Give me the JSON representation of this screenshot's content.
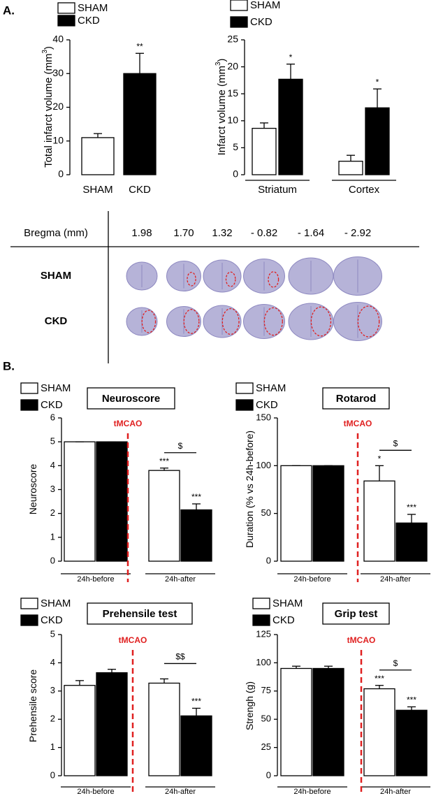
{
  "panel_labels": [
    "A.",
    "B."
  ],
  "chart_data": [
    {
      "type": "bar",
      "y_label": [
        "Total infarct volume (mm",
        "3",
        ")"
      ],
      "categories": [
        "SHAM",
        "CKD"
      ],
      "values": [
        11,
        30
      ],
      "errors": [
        1.2,
        6
      ],
      "colors": [
        "#ffffff",
        "#000000"
      ],
      "legend": [
        "SHAM",
        "CKD"
      ],
      "significance": [
        null,
        "**"
      ],
      "ylim": [
        0,
        40
      ],
      "yticks": [
        0,
        10,
        20,
        30,
        40
      ]
    },
    {
      "type": "grouped-bar",
      "y_label": [
        "Infarct volume (mm",
        "3",
        ")"
      ],
      "categories": [
        "Striatum",
        "Cortex"
      ],
      "series": [
        {
          "name": "SHAM",
          "color": "#ffffff",
          "values": [
            8.6,
            2.5
          ],
          "errors": [
            1.0,
            1.1
          ],
          "significance": [
            null,
            null
          ]
        },
        {
          "name": "CKD",
          "color": "#000000",
          "values": [
            17.7,
            12.4
          ],
          "errors": [
            2.8,
            3.5
          ],
          "significance": [
            "*",
            "*"
          ]
        }
      ],
      "ylim": [
        0,
        25
      ],
      "yticks": [
        0,
        5,
        10,
        15,
        20,
        25
      ]
    },
    {
      "type": "grouped-bar",
      "title": "Neuroscore",
      "y_label": [
        "Neuroscore"
      ],
      "event_label": "tMCAO",
      "comparison": "$",
      "categories": [
        "24h-before",
        "24h-after"
      ],
      "series": [
        {
          "name": "SHAM",
          "color": "#ffffff",
          "values": [
            5,
            3.8
          ],
          "errors": [
            0,
            0.1
          ],
          "significance": [
            null,
            "***"
          ]
        },
        {
          "name": "CKD",
          "color": "#000000",
          "values": [
            5,
            2.15
          ],
          "errors": [
            0,
            0.25
          ],
          "significance": [
            null,
            "***"
          ]
        }
      ],
      "ylim": [
        0,
        6
      ],
      "yticks": [
        0,
        1,
        2,
        3,
        4,
        5,
        6
      ]
    },
    {
      "type": "grouped-bar",
      "title": "Rotarod",
      "y_label": [
        "Duration (% vs 24h-before)"
      ],
      "event_label": "tMCAO",
      "comparison": "$",
      "categories": [
        "24h-before",
        "24h-after"
      ],
      "series": [
        {
          "name": "SHAM",
          "color": "#ffffff",
          "values": [
            100,
            84
          ],
          "errors": [
            0,
            16
          ],
          "significance": [
            null,
            "*"
          ]
        },
        {
          "name": "CKD",
          "color": "#000000",
          "values": [
            100,
            40
          ],
          "errors": [
            0,
            9
          ],
          "significance": [
            null,
            "***"
          ]
        }
      ],
      "ylim": [
        0,
        150
      ],
      "yticks": [
        0,
        50,
        100,
        150
      ]
    },
    {
      "type": "grouped-bar",
      "title": "Prehensile test",
      "y_label": [
        "Prehensile score"
      ],
      "event_label": "tMCAO",
      "comparison": "$$",
      "categories": [
        "24h-before",
        "24h-after"
      ],
      "series": [
        {
          "name": "SHAM",
          "color": "#ffffff",
          "values": [
            3.2,
            3.28
          ],
          "errors": [
            0.17,
            0.15
          ],
          "significance": [
            null,
            null
          ]
        },
        {
          "name": "CKD",
          "color": "#000000",
          "values": [
            3.65,
            2.12
          ],
          "errors": [
            0.12,
            0.27
          ],
          "significance": [
            null,
            "***"
          ]
        }
      ],
      "ylim": [
        0,
        5
      ],
      "yticks": [
        0,
        1,
        2,
        3,
        4,
        5
      ]
    },
    {
      "type": "grouped-bar",
      "title": "Grip test",
      "y_label": [
        "Strengh (g)"
      ],
      "event_label": "tMCAO",
      "comparison": "$",
      "categories": [
        "24h-before",
        "24h-after"
      ],
      "series": [
        {
          "name": "SHAM",
          "color": "#ffffff",
          "values": [
            95,
            77
          ],
          "errors": [
            2,
            3
          ],
          "significance": [
            null,
            "***"
          ]
        },
        {
          "name": "CKD",
          "color": "#000000",
          "values": [
            95,
            58
          ],
          "errors": [
            2,
            3
          ],
          "significance": [
            null,
            "***"
          ]
        }
      ],
      "ylim": [
        0,
        125
      ],
      "yticks": [
        0,
        25,
        50,
        75,
        100,
        125
      ]
    }
  ],
  "slice_table": {
    "header": "Bregma (mm)",
    "columns": [
      "1.98",
      "1.70",
      "1.32",
      "- 0.82",
      "- 1.64",
      "- 2.92"
    ],
    "rows": [
      "SHAM",
      "CKD"
    ]
  }
}
